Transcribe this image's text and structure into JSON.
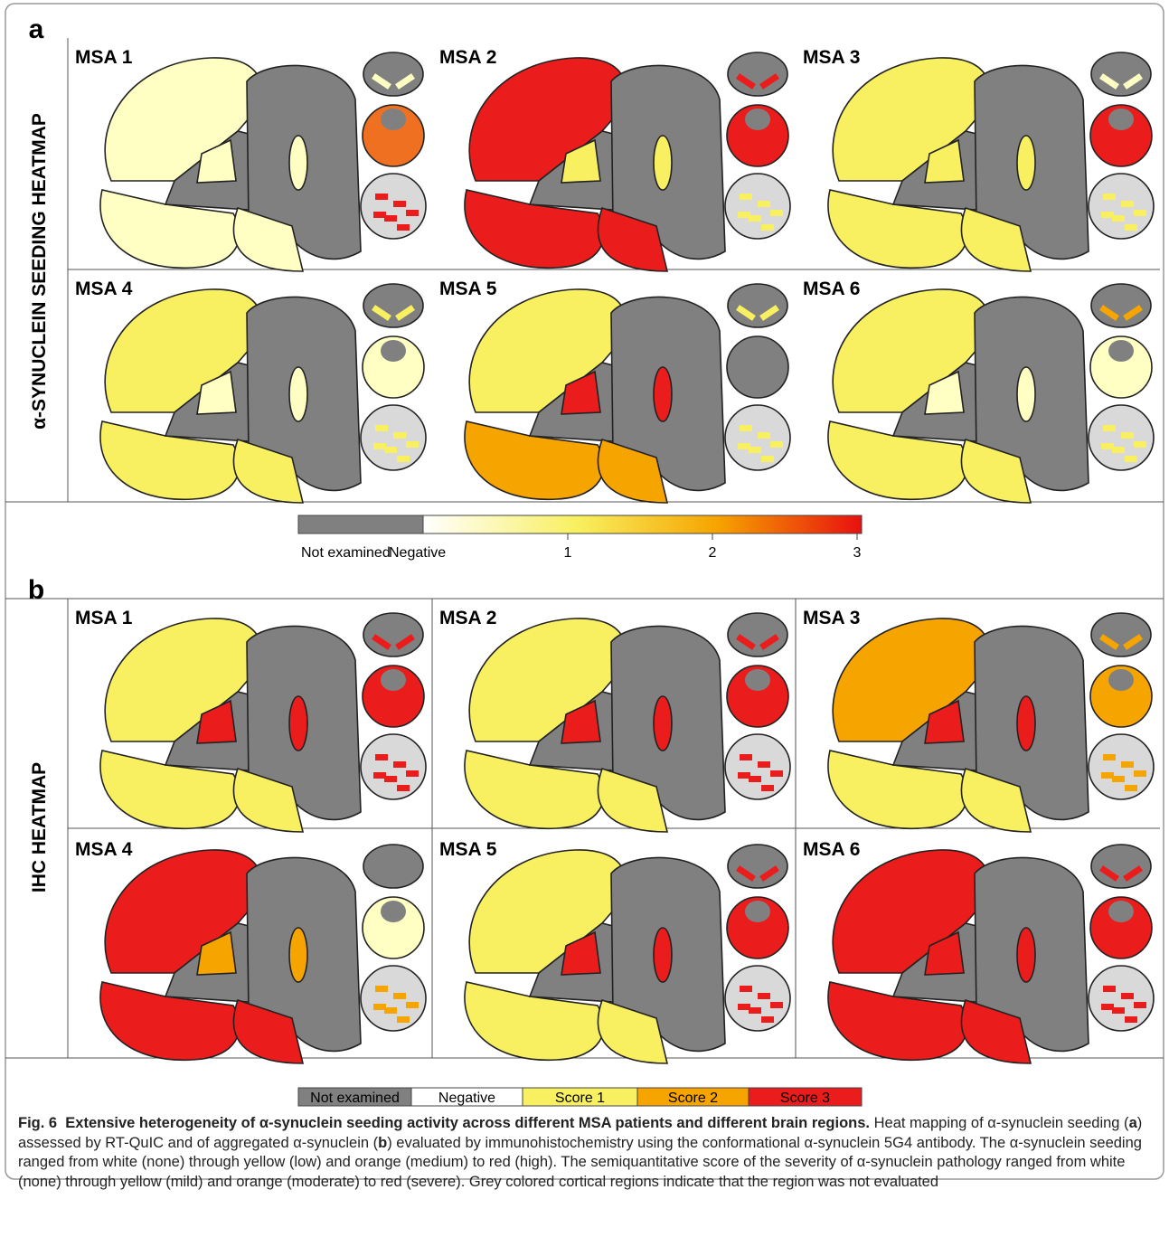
{
  "figure": {
    "panels": [
      {
        "label": "a",
        "title": "α-SYNUCLEIN SEEDING HEATMAP",
        "cells": [
          "MSA 1",
          "MSA 2",
          "MSA 3",
          "MSA 4",
          "MSA 5",
          "MSA 6"
        ]
      },
      {
        "label": "b",
        "title": "IHC HEATMAP",
        "cells": [
          "MSA 1",
          "MSA 2",
          "MSA 3",
          "MSA 4",
          "MSA 5",
          "MSA 6"
        ]
      }
    ],
    "colorbar_a": {
      "labels": [
        "Not examined",
        "Negative"
      ],
      "ticks": [
        1,
        2,
        3
      ],
      "lim": [
        0,
        3
      ]
    },
    "colorbar_b": {
      "labels": [
        "Not examined",
        "Negative",
        "Score 1",
        "Score 2",
        "Score 3"
      ]
    },
    "caption": {
      "label": "Fig. 6",
      "title": "Extensive heterogeneity of α-synuclein seeding activity across different MSA patients and different brain regions.",
      "parts": [
        "Heat mapping of α-synuclein seeding (",
        "a",
        ") assessed by RT-QuIC and of aggregated α-synuclein (",
        "b",
        ") evaluated by immunohistochemistry using the conformational α-synuclein 5G4 antibody. The α-synuclein seeding ranged from white (none) through yellow (low) and orange (medium) to red (high). The semiquantitative score of the severity of α-synuclein pathology ranged from white (none) through yellow (mild) and orange (moderate) to red (severe). Grey colored cortical regions indicate that the region was not evaluated"
      ]
    }
  }
}
